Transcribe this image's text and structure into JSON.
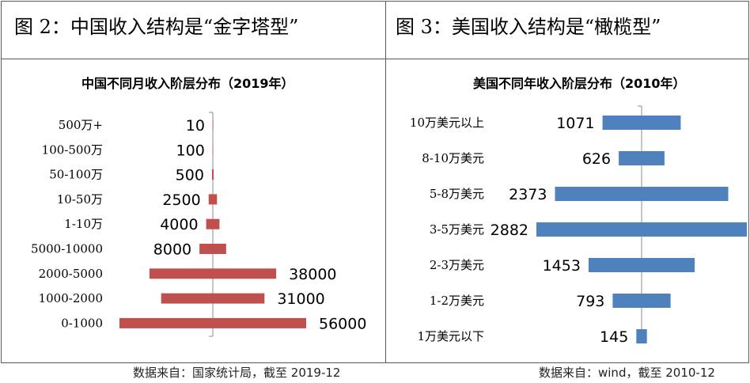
{
  "left_panel": {
    "heading": "图 2：中国收入结构是“金字塔型”",
    "source": "数据来自：国家统计局，截至 2019-12"
  },
  "right_panel": {
    "heading": "图 3：美国收入结构是“橄榄型”",
    "source": "数据来自：wind，截至 2010-12"
  },
  "colors": {
    "china_bar": "#c0504d",
    "us_bar": "#4f81bd",
    "axis": "#8c8c8c",
    "border": "#5a5a5a"
  },
  "chart_data": [
    {
      "type": "bar",
      "orientation": "horizontal-centered",
      "title": "中国不同月收入阶层分布（2019年）",
      "categories": [
        "500万+",
        "100-500万",
        "50-100万",
        "10-50万",
        "1-10万",
        "5000-10000",
        "2000-5000",
        "1000-2000",
        "0-1000"
      ],
      "value_labels": [
        "10",
        "100",
        "500",
        "2500",
        "4000",
        "8000",
        "38000",
        "31000",
        "56000"
      ],
      "values": [
        10,
        100,
        500,
        2500,
        4000,
        8000,
        38000,
        31000,
        56000
      ]
    },
    {
      "type": "bar",
      "orientation": "horizontal-centered",
      "title": "美国不同年收入阶层分布（2010年）",
      "categories": [
        "10万美元以上",
        "8-10万美元",
        "5-8万美元",
        "3-5万美元",
        "2-3万美元",
        "1-2万美元",
        "1万美元以下"
      ],
      "value_labels": [
        "1071",
        "626",
        "2373",
        "2882",
        "1453",
        "793",
        "145"
      ],
      "values": [
        1071,
        626,
        2373,
        2882,
        1453,
        793,
        145
      ]
    }
  ]
}
